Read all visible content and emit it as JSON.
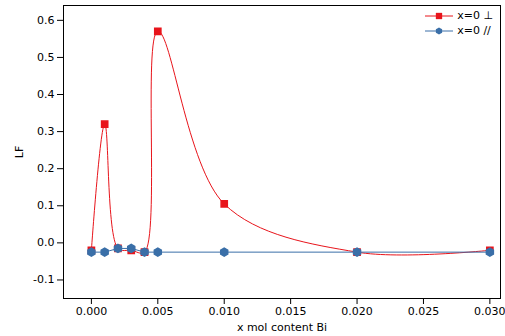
{
  "chart_data": {
    "type": "line",
    "xlabel": "x mol content Bi",
    "ylabel": "LF",
    "xlim": [
      -0.0021,
      0.0308
    ],
    "ylim": [
      -0.15,
      0.64
    ],
    "xticks": [
      {
        "value": 0,
        "label": "0.000"
      },
      0.005,
      {
        "value": 0.01,
        "label": "0.010"
      },
      0.015,
      {
        "value": 0.02,
        "label": "0.020"
      },
      0.025,
      {
        "value": 0.03,
        "label": "0.030"
      }
    ],
    "yticks": [
      -0.1,
      {
        "value": 0,
        "label": "0.0"
      },
      0.1,
      0.2,
      0.3,
      0.4,
      0.5,
      0.6
    ],
    "legend": "top-right",
    "grid": false,
    "x": [
      0,
      0.001,
      0.002,
      0.003,
      0.004,
      0.005,
      0.01,
      0.02,
      0.03
    ],
    "series": [
      {
        "name": "x=0 ⊥",
        "color": "#e8141b",
        "marker": "square",
        "line_style": "spline",
        "values": [
          -0.02,
          0.32,
          -0.015,
          -0.02,
          -0.025,
          0.57,
          0.105,
          -0.025,
          -0.02
        ]
      },
      {
        "name": "x=0 //",
        "color": "#3a6fa8",
        "marker": "hexagon",
        "line_style": "solid",
        "values": [
          -0.025,
          -0.025,
          -0.015,
          -0.015,
          -0.025,
          -0.025,
          -0.025,
          -0.025,
          -0.025
        ]
      }
    ]
  }
}
